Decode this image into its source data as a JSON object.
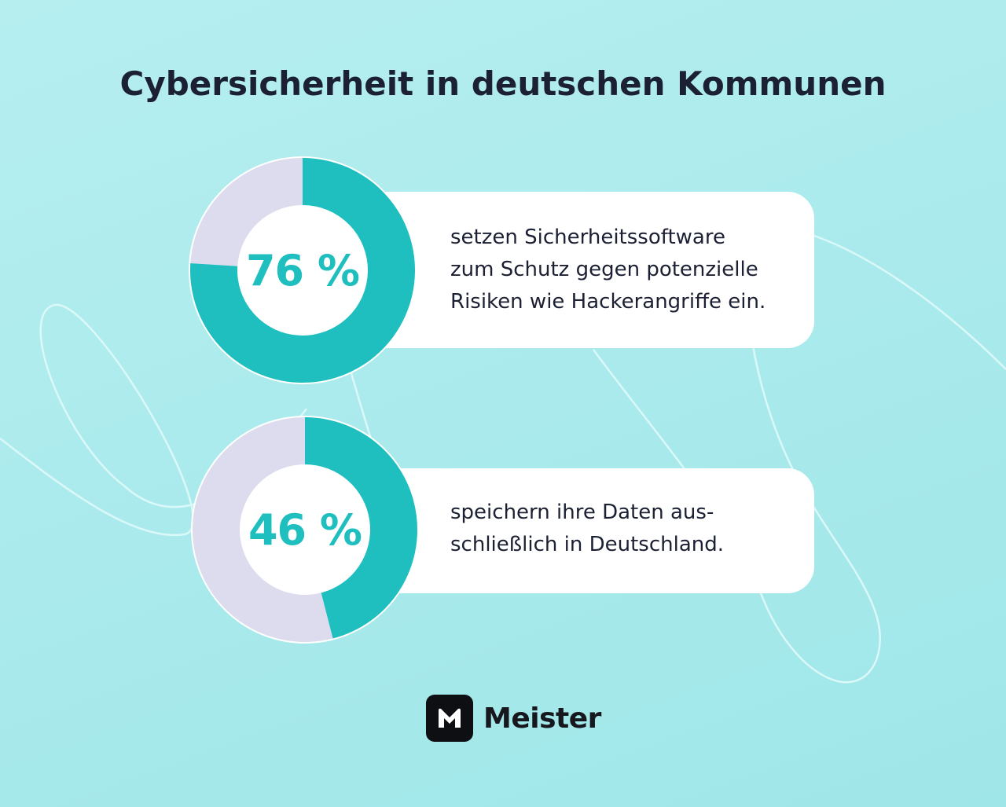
{
  "title": "Cybersicherheit in deutschen Kommunen",
  "colors": {
    "accent": "#1ebfbe",
    "remainder": "#dcdcee",
    "text": "#1b2033",
    "background": "#abebed"
  },
  "chart_data": [
    {
      "type": "pie",
      "values": [
        76,
        24
      ],
      "value_label": "76 %",
      "description_lines": [
        "setzen Sicherheitssoftware",
        "zum Schutz gegen potenzielle",
        "Risiken wie Hackerangriffe ein."
      ]
    },
    {
      "type": "pie",
      "values": [
        46,
        54
      ],
      "value_label": "46 %",
      "description_lines": [
        "speichern ihre Daten aus-",
        "schließlich in Deutschland."
      ]
    }
  ],
  "brand": {
    "name": "Meister",
    "logo_icon": "meister-m-icon"
  }
}
